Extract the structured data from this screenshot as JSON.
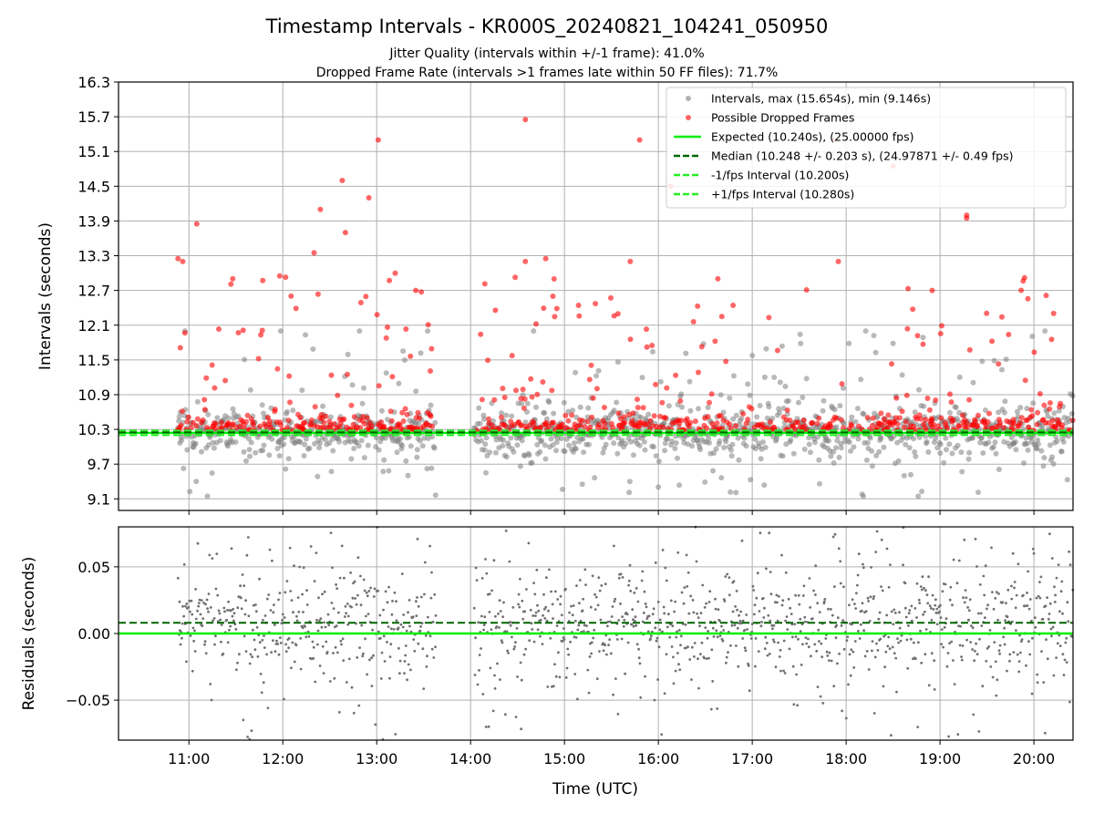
{
  "chart_data": {
    "type": "scatter",
    "title": "Timestamp Intervals - KR000S_20240821_104241_050950",
    "subtitle_1": "Jitter Quality (intervals within +/-1 frame): 41.0%",
    "subtitle_2": "Dropped Frame Rate (intervals >1 frames late within 50 FF files): 71.7%",
    "xlabel": "Time (UTC)",
    "x_ticks": [
      "11:00",
      "12:00",
      "13:00",
      "14:00",
      "15:00",
      "16:00",
      "17:00",
      "18:00",
      "19:00",
      "20:00"
    ],
    "x_range": [
      "10:15",
      "20:25"
    ],
    "top_panel": {
      "ylabel": "Intervals (seconds)",
      "y_ticks": [
        "16.3",
        "15.7",
        "15.1",
        "14.5",
        "13.9",
        "13.3",
        "12.7",
        "12.1",
        "11.5",
        "10.9",
        "10.3",
        "9.7",
        "9.1"
      ],
      "ylim": [
        8.9,
        16.3
      ],
      "grid": true,
      "legend_position": "top-right",
      "legend": [
        {
          "label": "Intervals, max (15.654s), min (9.146s)",
          "color": "#808080",
          "marker": "circle"
        },
        {
          "label": "Possible Dropped Frames",
          "color": "#ff0000",
          "marker": "circle"
        },
        {
          "label": "Expected (10.240s), (25.00000 fps)",
          "color": "#00ee00",
          "line": "solid"
        },
        {
          "label": "Median (10.248 +/- 0.203 s), (24.97871 +/- 0.49 fps)",
          "color": "#006400",
          "line": "dashed"
        },
        {
          "label": "-1/fps Interval (10.200s)",
          "color": "#22ee22",
          "line": "dashed"
        },
        {
          "label": "+1/fps Interval (10.280s)",
          "color": "#22ee22",
          "line": "dashed"
        }
      ],
      "expected": 10.24,
      "median": 10.248,
      "minus_interval": 10.2,
      "plus_interval": 10.28,
      "max_interval": 15.654,
      "min_interval": 9.146,
      "colors": {
        "normal": "#808080",
        "dropped": "#ff0000",
        "expected": "#00ee00",
        "median": "#006400",
        "bounds": "#22ee22"
      }
    },
    "bottom_panel": {
      "ylabel": "Residuals (seconds)",
      "y_ticks": [
        "0.05",
        "0.00",
        "−0.05"
      ],
      "ylim": [
        -0.08,
        0.08
      ],
      "expected_residual": 0.0,
      "median_residual": 0.008,
      "grid": true
    },
    "data_note": "Intervals sampled approximately every ~20 s; dense band near 10.24 s with data gaps near 13:40-14:00 and 17:00-17:50 lighter sampling."
  }
}
